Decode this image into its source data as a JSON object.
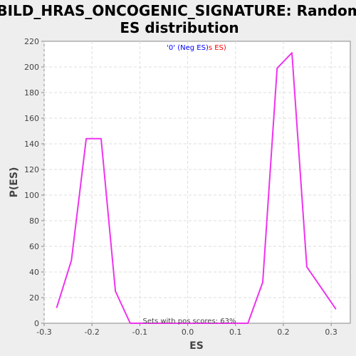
{
  "chart_data": {
    "type": "line",
    "title_lines": [
      "BILD_HRAS_ONCOGENIC_SIGNATURE: Random",
      "ES distribution"
    ],
    "xlabel": "ES",
    "ylabel": "P(ES)",
    "xlim": [
      -0.3,
      0.34
    ],
    "ylim": [
      0,
      220
    ],
    "x_ticks": [
      -0.3,
      -0.2,
      -0.1,
      0.0,
      0.1,
      0.2,
      0.3
    ],
    "x_tick_labels": [
      "-0.3",
      "-0.2",
      "-0.1",
      "0.0",
      "0.1",
      "0.2",
      "0.3"
    ],
    "y_ticks": [
      0,
      20,
      40,
      60,
      80,
      100,
      120,
      140,
      160,
      180,
      200,
      220
    ],
    "y_tick_labels": [
      "0",
      "20",
      "40",
      "60",
      "80",
      "100",
      "120",
      "140",
      "160",
      "180",
      "200",
      "220"
    ],
    "grid": true,
    "legend": {
      "placement": "top-center",
      "parts": [
        {
          "text": "'0' (Neg ES)",
          "color": "#0000ff"
        },
        {
          "text": "s ES)",
          "color": "#ff0000"
        }
      ]
    },
    "annotation": "Sets with pos scores: 63%",
    "series": [
      {
        "color": "#ee33ee",
        "x": [
          -0.274,
          -0.243,
          -0.212,
          -0.181,
          -0.151,
          -0.12,
          -0.089,
          -0.058,
          -0.027,
          0.003,
          0.034,
          0.065,
          0.095,
          0.126,
          0.157,
          0.187,
          0.218,
          0.249,
          0.31
        ],
        "y": [
          12,
          49,
          144,
          144,
          25,
          0,
          0,
          0,
          0,
          0,
          0,
          0,
          0,
          0,
          32,
          199,
          211,
          44,
          11
        ]
      }
    ]
  }
}
